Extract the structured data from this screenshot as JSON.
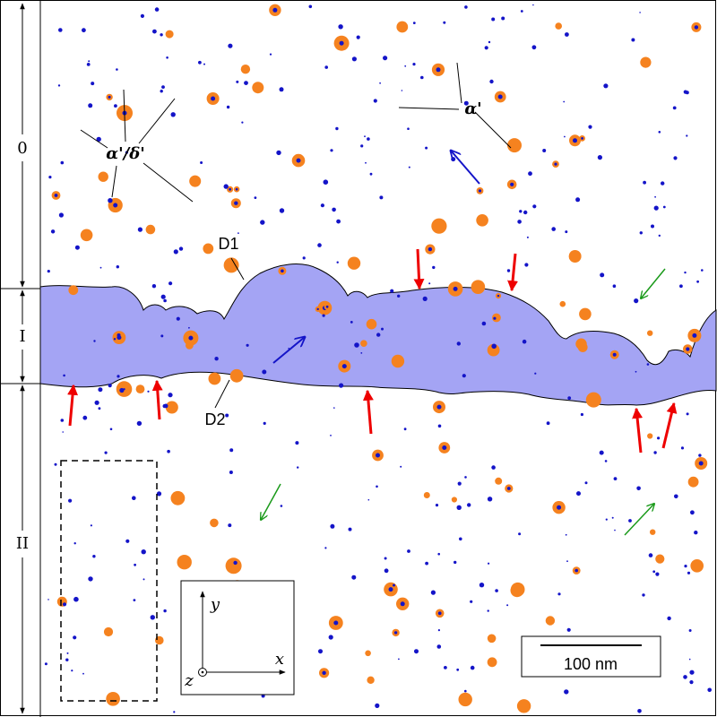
{
  "zones": [
    "0",
    "I",
    "II"
  ],
  "phase_labels": [
    "α'/δ'",
    "α'"
  ],
  "interfaces": [
    "D1",
    "D2"
  ],
  "scale_bar": "100 nm",
  "axes": {
    "x": "x",
    "y": "y",
    "z": "z"
  }
}
